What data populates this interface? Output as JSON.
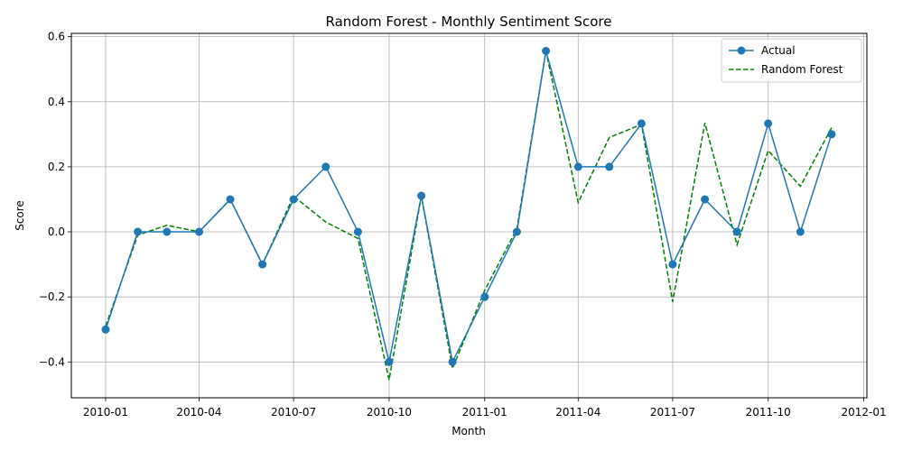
{
  "chart_data": {
    "type": "line",
    "title": "Random Forest - Monthly Sentiment Score",
    "xlabel": "Month",
    "ylabel": "Score",
    "x": [
      "2010-01-01",
      "2010-02-01",
      "2010-03-01",
      "2010-04-01",
      "2010-05-01",
      "2010-06-01",
      "2010-07-01",
      "2010-08-01",
      "2010-09-01",
      "2010-10-01",
      "2010-11-01",
      "2010-12-01",
      "2011-01-01",
      "2011-02-01",
      "2011-03-01",
      "2011-04-01",
      "2011-05-01",
      "2011-06-01",
      "2011-07-01",
      "2011-08-01",
      "2011-09-01",
      "2011-10-01",
      "2011-11-01",
      "2011-12-01"
    ],
    "series": [
      {
        "name": "Actual",
        "color": "#1f77b4",
        "style": "solid-with-markers",
        "values": [
          -0.3,
          0.0,
          0.0,
          0.0,
          0.1,
          -0.1,
          0.1,
          0.2,
          0.0,
          -0.4,
          0.111,
          -0.4,
          -0.2,
          0.0,
          0.556,
          0.2,
          0.2,
          0.333,
          -0.1,
          0.1,
          0.0,
          0.333,
          0.0,
          0.3
        ]
      },
      {
        "name": "Random Forest",
        "color": "#008000",
        "style": "dashed",
        "values": [
          -0.29,
          -0.01,
          0.02,
          0.0,
          0.1,
          -0.1,
          0.11,
          0.03,
          -0.02,
          -0.455,
          0.11,
          -0.42,
          -0.18,
          0.01,
          0.556,
          0.09,
          0.29,
          0.33,
          -0.215,
          0.335,
          -0.04,
          0.25,
          0.14,
          0.32
        ]
      }
    ],
    "xticks": [
      "2010-01",
      "2010-04",
      "2010-07",
      "2010-10",
      "2011-01",
      "2011-04",
      "2011-07",
      "2011-10",
      "2012-01"
    ],
    "yticks": [
      "−0.4",
      "−0.2",
      "0.0",
      "0.2",
      "0.4",
      "0.6"
    ],
    "ylim": [
      -0.51,
      0.61
    ],
    "xlim": [
      "2009-11-29",
      "2012-01-04"
    ],
    "grid": true,
    "legend_position": "top-right"
  }
}
